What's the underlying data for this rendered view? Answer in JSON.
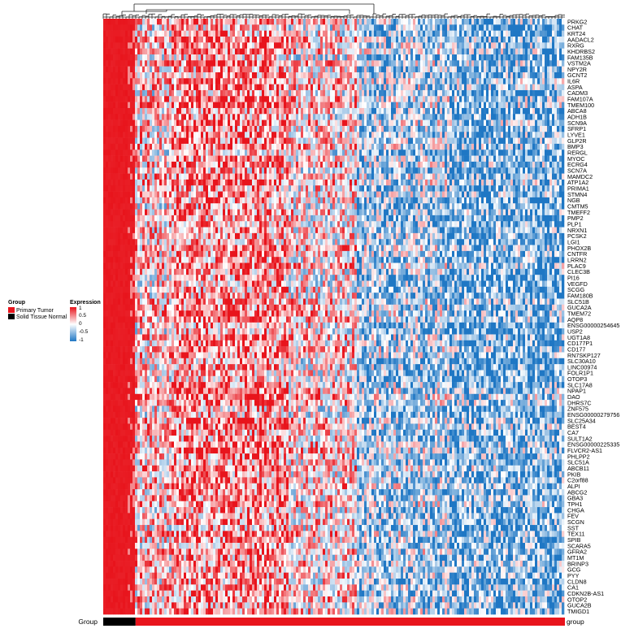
{
  "legend": {
    "group_title": "Group",
    "group_items": [
      {
        "label": "Primary Tumor",
        "color": "#e8141c"
      },
      {
        "label": "Solid Tissue Normal",
        "color": "#000000"
      }
    ],
    "expression_title": "Expression",
    "expression_ticks": [
      "1",
      "0.5",
      "0",
      "-0.5",
      "-1"
    ]
  },
  "annotation_bar": {
    "left_label": "Group",
    "right_label": "group",
    "normal_fraction": 0.07
  },
  "chart_data": {
    "type": "heatmap",
    "title": "",
    "xlabel": "",
    "ylabel": "",
    "color_scale": {
      "min": -1,
      "mid": 0,
      "max": 1,
      "low_color": "#1f77c4",
      "mid_color": "#ffffff",
      "high_color": "#e8141c"
    },
    "column_dendrogram": true,
    "genes": [
      "PRKG2",
      "CHAT",
      "KRT24",
      "AADACL2",
      "RXRG",
      "KHDRBS2",
      "FAM135B",
      "VSTM2A",
      "NPY2R",
      "GCNT2",
      "IL6R",
      "ASPA",
      "CADM3",
      "FAM107A",
      "TMEM100",
      "ABCA8",
      "ADH1B",
      "SCN9A",
      "SFRP1",
      "LYVE1",
      "GLP2R",
      "BMP3",
      "RERGL",
      "MYOC",
      "ECRG4",
      "SCN7A",
      "MAMDC2",
      "ATP1A2",
      "PRIMA1",
      "STMN4",
      "NGB",
      "CMTM5",
      "TMEFF2",
      "PMP2",
      "PLP1",
      "NRXN1",
      "PCSK2",
      "LGI1",
      "PHOX2B",
      "CNTFR",
      "LRRN2",
      "PLAC9",
      "CLEC3B",
      "PI16",
      "VEGFD",
      "SCGG",
      "FAM180B",
      "SLC51B",
      "GUCA2A",
      "TMEM72",
      "AQP8",
      "ENSG00000254645",
      "USP2",
      "UGT1A8",
      "CD177P1",
      "CD177",
      "RN7SKP127",
      "SLC30A10",
      "LINC00974",
      "FOLR1P1",
      "OTOP3",
      "SLC17A8",
      "NPAP1",
      "DAO",
      "DHRS7C",
      "ZNF575",
      "ENSG00000279756",
      "SLC25A34",
      "BEST4",
      "CA7",
      "SULT1A2",
      "ENSG00000225335",
      "FLVCR2-AS1",
      "PHLPP2",
      "SLC51A",
      "ABCB11",
      "PKIB",
      "C2orf88",
      "ALPI",
      "ABCG2",
      "GBA3",
      "TPH1",
      "CHGA",
      "FEV",
      "SCGN",
      "SST",
      "TEX11",
      "SPIB",
      "SCARA5",
      "GFRA2",
      "MT1M",
      "BRINP3",
      "GCG",
      "PYY",
      "CLDN8",
      "CA1",
      "CDKN2B-AS1",
      "OTOP2",
      "GUCA2B",
      "TMIGD1"
    ],
    "column_blocks": [
      {
        "group": "Solid Tissue Normal",
        "fraction": 0.07,
        "mean": 1.0
      },
      {
        "group": "Primary Tumor",
        "fraction": 0.08,
        "mean": 0.2
      },
      {
        "group": "Primary Tumor",
        "fraction": 0.25,
        "mean": 0.45
      },
      {
        "group": "Primary Tumor",
        "fraction": 0.15,
        "mean": 0.15
      },
      {
        "group": "Primary Tumor",
        "fraction": 0.2,
        "mean": -0.35
      },
      {
        "group": "Primary Tumor",
        "fraction": 0.25,
        "mean": -0.55
      }
    ]
  }
}
